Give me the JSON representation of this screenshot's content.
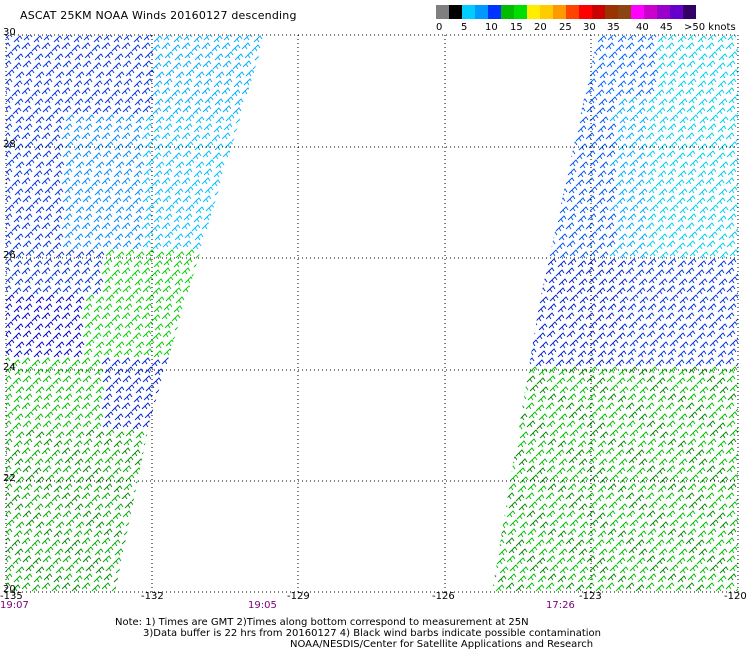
{
  "title": "ASCAT 25KM NOAA Winds 20160127 descending",
  "legend": {
    "ticks": [
      "0",
      "5",
      "10",
      "15",
      "20",
      "25",
      "30",
      "35",
      "40",
      "45",
      ">50 knots"
    ],
    "colors": [
      "#7f7f7f",
      "#000000",
      "#00ccff",
      "#0099ff",
      "#0033ff",
      "#00bb00",
      "#00dd00",
      "#ffee00",
      "#ffcc00",
      "#ff9900",
      "#ff4400",
      "#ff0000",
      "#cc0000",
      "#993300",
      "#8b4513",
      "#ff00ff",
      "#cc00cc",
      "#9900cc",
      "#6600cc",
      "#330066"
    ]
  },
  "map": {
    "lat_labels": [
      "30",
      "28",
      "26",
      "24",
      "22",
      "20"
    ],
    "lon_labels": [
      "-135",
      "-132",
      "-129",
      "-126",
      "-123",
      "-120"
    ],
    "time_labels": [
      "19:07",
      "19:05",
      "17:26"
    ]
  },
  "notes": [
    "Note: 1) Times are GMT 2)Times along bottom correspond to measurement at 25N",
    "3)Data buffer is 22 hrs from 20160127 4) Black wind barbs indicate possible contamination",
    "NOAA/NESDIS/Center for Satellite Applications and Research"
  ]
}
